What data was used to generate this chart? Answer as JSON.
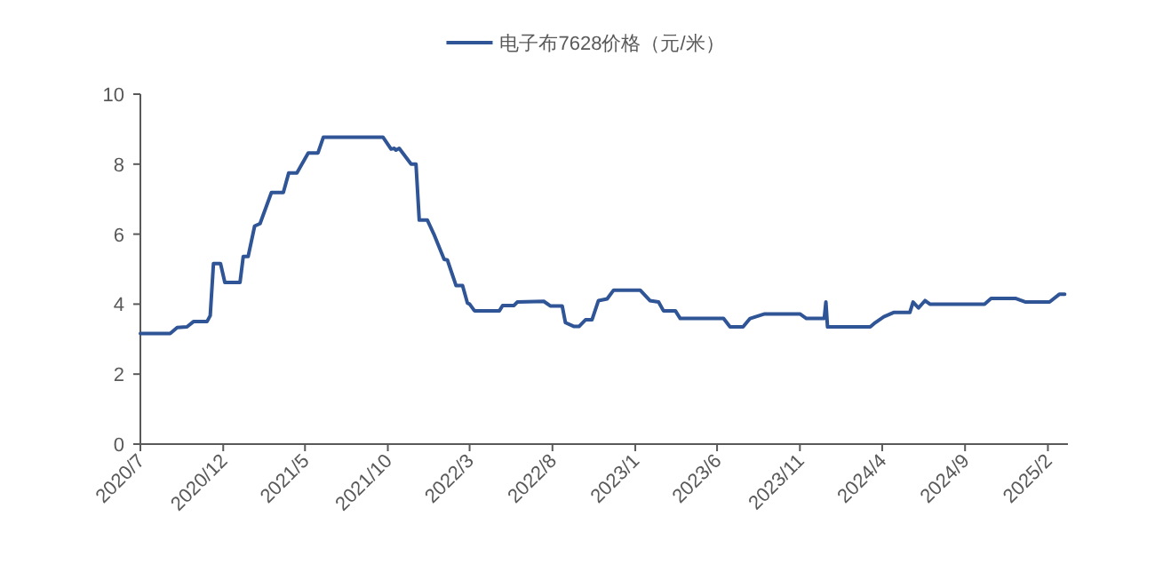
{
  "chart_data": {
    "type": "line",
    "legend": "top",
    "x": [
      "2020-07-01",
      "2020-08-25",
      "2020-09-07",
      "2020-09-25",
      "2020-10-07",
      "2020-11-01",
      "2020-11-07",
      "2020-11-13",
      "2020-11-26",
      "2020-12-04",
      "2021-01-01",
      "2021-01-07",
      "2021-01-16",
      "2021-01-28",
      "2021-02-07",
      "2021-02-28",
      "2021-03-22",
      "2021-04-01",
      "2021-04-16",
      "2021-05-07",
      "2021-05-25",
      "2021-06-04",
      "2021-09-22",
      "2021-10-07",
      "2021-10-13",
      "2021-10-16",
      "2021-10-22",
      "2021-11-13",
      "2021-11-22",
      "2021-11-28",
      "2021-12-13",
      "2021-12-25",
      "2022-01-13",
      "2022-01-19",
      "2022-02-04",
      "2022-02-16",
      "2022-02-25",
      "2022-03-01",
      "2022-03-10",
      "2022-04-25",
      "2022-05-01",
      "2022-05-22",
      "2022-05-28",
      "2022-07-16",
      "2022-07-28",
      "2022-08-19",
      "2022-08-25",
      "2022-09-10",
      "2022-09-19",
      "2022-10-01",
      "2022-10-13",
      "2022-10-25",
      "2022-11-10",
      "2022-11-22",
      "2023-01-10",
      "2023-01-28",
      "2023-02-13",
      "2023-02-22",
      "2023-03-16",
      "2023-03-25",
      "2023-06-13",
      "2023-06-25",
      "2023-07-19",
      "2023-08-01",
      "2023-08-28",
      "2023-11-01",
      "2023-11-13",
      "2023-12-16",
      "2023-12-19",
      "2023-12-22",
      "2024-03-10",
      "2024-03-19",
      "2024-04-04",
      "2024-04-22",
      "2024-05-22",
      "2024-05-28",
      "2024-06-07",
      "2024-06-19",
      "2024-06-28",
      "2024-10-07",
      "2024-10-19",
      "2024-12-04",
      "2024-12-22",
      "2025-02-04",
      "2025-02-22",
      "2025-03-04"
    ],
    "series": [
      {
        "name": "电子布7628价格（元/米）",
        "color": "#2f5597",
        "values": [
          3.16,
          3.16,
          3.33,
          3.35,
          3.5,
          3.5,
          3.67,
          5.16,
          5.16,
          4.62,
          4.62,
          5.36,
          5.36,
          6.23,
          6.3,
          7.19,
          7.19,
          7.75,
          7.75,
          8.32,
          8.32,
          8.77,
          8.77,
          8.43,
          8.45,
          8.4,
          8.45,
          8.0,
          8.0,
          6.4,
          6.4,
          6.0,
          5.28,
          5.26,
          4.53,
          4.53,
          4.03,
          4.0,
          3.81,
          3.81,
          3.96,
          3.96,
          4.06,
          4.08,
          3.95,
          3.95,
          3.47,
          3.36,
          3.36,
          3.55,
          3.55,
          4.1,
          4.15,
          4.4,
          4.4,
          4.1,
          4.06,
          3.81,
          3.81,
          3.59,
          3.59,
          3.35,
          3.35,
          3.59,
          3.72,
          3.72,
          3.59,
          3.59,
          4.06,
          3.35,
          3.35,
          3.47,
          3.64,
          3.76,
          3.76,
          4.06,
          3.89,
          4.1,
          4.0,
          4.0,
          4.16,
          4.16,
          4.06,
          4.06,
          4.28,
          4.28
        ]
      }
    ],
    "xlim": [
      "2020-07-01",
      "2025-03-10"
    ],
    "xticks": [
      {
        "value": "2020-07-01",
        "label": "2020/7"
      },
      {
        "value": "2020-12-01",
        "label": "2020/12"
      },
      {
        "value": "2021-05-01",
        "label": "2021/5"
      },
      {
        "value": "2021-10-01",
        "label": "2021/10"
      },
      {
        "value": "2022-03-01",
        "label": "2022/3"
      },
      {
        "value": "2022-08-01",
        "label": "2022/8"
      },
      {
        "value": "2023-01-01",
        "label": "2023/1"
      },
      {
        "value": "2023-06-01",
        "label": "2023/6"
      },
      {
        "value": "2023-11-01",
        "label": "2023/11"
      },
      {
        "value": "2024-04-01",
        "label": "2024/4"
      },
      {
        "value": "2024-09-01",
        "label": "2024/9"
      },
      {
        "value": "2025-02-01",
        "label": "2025/2"
      }
    ],
    "ylim": [
      0,
      10
    ],
    "yticks": [
      0,
      2,
      4,
      6,
      8,
      10
    ],
    "grid": false,
    "marker": "none",
    "line_style": "solid"
  }
}
